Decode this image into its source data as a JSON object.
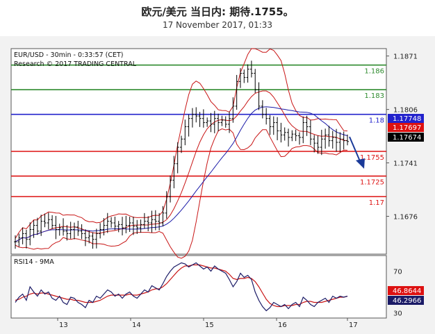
{
  "header": {
    "title": "欧元/美元 当日内: 期待.1755。",
    "subtitle": "17 November 2017, 01:33"
  },
  "chart_data": {
    "type": "candlestick",
    "instrument_label": "EUR/USD - 30min - 0:33:57 (CET)",
    "copyright": "Research © 2017 TRADING CENTRAL",
    "price_axis": {
      "ylim": [
        1.163,
        1.188
      ],
      "ticks": [
        {
          "value": 1.1871,
          "label": "1.1871"
        },
        {
          "value": 1.1806,
          "label": "1.1806"
        },
        {
          "value": 1.1741,
          "label": "1.1741"
        },
        {
          "value": 1.1676,
          "label": "1.1676"
        }
      ]
    },
    "x_axis": {
      "ticks": [
        {
          "label": "13"
        },
        {
          "label": "14"
        },
        {
          "label": "15"
        },
        {
          "label": "16"
        },
        {
          "label": "17"
        }
      ]
    },
    "levels": [
      {
        "value": 1.186,
        "label": "1.186",
        "color": "#2e8b2e"
      },
      {
        "value": 1.183,
        "label": "1.183",
        "color": "#2e8b2e"
      },
      {
        "value": 1.18,
        "label": "1.18",
        "color": "#2222cc"
      },
      {
        "value": 1.1755,
        "label": "1.1755",
        "color": "#dd1111"
      },
      {
        "value": 1.1725,
        "label": "1.1725",
        "color": "#dd1111"
      },
      {
        "value": 1.17,
        "label": "1.17",
        "color": "#dd1111"
      }
    ],
    "price_flags": [
      {
        "label": "1.17748",
        "color": "#2222cc"
      },
      {
        "label": "1.17697",
        "color": "#dd1111"
      },
      {
        "label": "1.17674",
        "color": "#000000"
      }
    ],
    "rsi": {
      "label": "RSI14 - 9MA",
      "ylim": [
        25,
        85
      ],
      "ticks": [
        {
          "value": 70,
          "label": "70"
        },
        {
          "value": 30,
          "label": "30"
        }
      ],
      "flags": [
        {
          "label": "46.8644",
          "color": "#dd1111"
        },
        {
          "label": "46.2966",
          "color": "#1a1a66"
        }
      ]
    },
    "close_path": [
      1.1645,
      1.165,
      1.1655,
      1.1648,
      1.166,
      1.1665,
      1.1658,
      1.167,
      1.1668,
      1.1672,
      1.1665,
      1.166,
      1.1662,
      1.1658,
      1.1655,
      1.166,
      1.1663,
      1.1658,
      1.1655,
      1.165,
      1.1652,
      1.1648,
      1.1655,
      1.166,
      1.1665,
      1.167,
      1.1668,
      1.1664,
      1.1666,
      1.1662,
      1.1665,
      1.1668,
      1.1664,
      1.1662,
      1.1666,
      1.167,
      1.1668,
      1.1672,
      1.167,
      1.1668,
      1.168,
      1.17,
      1.172,
      1.174,
      1.176,
      1.177,
      1.1785,
      1.1795,
      1.18,
      1.1798,
      1.1795,
      1.179,
      1.1792,
      1.1788,
      1.1795,
      1.179,
      1.1793,
      1.1788,
      1.1795,
      1.181,
      1.184,
      1.185,
      1.1845,
      1.1855,
      1.185,
      1.183,
      1.181,
      1.18,
      1.1795,
      1.1785,
      1.179,
      1.178,
      1.1775,
      1.1778,
      1.1772,
      1.1776,
      1.1774,
      1.1772,
      1.179,
      1.1785,
      1.177,
      1.1765,
      1.176,
      1.177,
      1.1775,
      1.1768,
      1.1772,
      1.1766,
      1.177,
      1.1768,
      1.1767
    ],
    "rsi_path": [
      40,
      45,
      48,
      42,
      55,
      50,
      46,
      52,
      48,
      50,
      44,
      42,
      46,
      40,
      38,
      45,
      44,
      40,
      38,
      35,
      42,
      40,
      46,
      44,
      48,
      52,
      50,
      46,
      48,
      44,
      48,
      50,
      46,
      44,
      48,
      52,
      50,
      56,
      54,
      52,
      58,
      65,
      70,
      74,
      76,
      78,
      77,
      74,
      76,
      78,
      75,
      72,
      74,
      70,
      75,
      72,
      70,
      68,
      62,
      55,
      60,
      68,
      64,
      66,
      62,
      50,
      42,
      36,
      32,
      35,
      40,
      38,
      36,
      38,
      34,
      38,
      40,
      36,
      45,
      42,
      38,
      36,
      40,
      42,
      44,
      40,
      46,
      44,
      46,
      45,
      46
    ],
    "rsi_ma_path": [
      42,
      43,
      45,
      46,
      48,
      49,
      48,
      49,
      49,
      48,
      47,
      46,
      45,
      44,
      43,
      43,
      42,
      42,
      41,
      40,
      40,
      40,
      41,
      42,
      44,
      46,
      47,
      47,
      47,
      47,
      47,
      48,
      47,
      47,
      48,
      49,
      50,
      52,
      53,
      53,
      55,
      58,
      62,
      66,
      70,
      73,
      75,
      75,
      76,
      76,
      76,
      75,
      74,
      73,
      73,
      72,
      71,
      70,
      67,
      63,
      62,
      63,
      63,
      64,
      63,
      60,
      55,
      49,
      43,
      39,
      37,
      36,
      36,
      37,
      37,
      37,
      38,
      38,
      40,
      41,
      41,
      40,
      40,
      40,
      41,
      42,
      43,
      44,
      45,
      45,
      46
    ]
  }
}
